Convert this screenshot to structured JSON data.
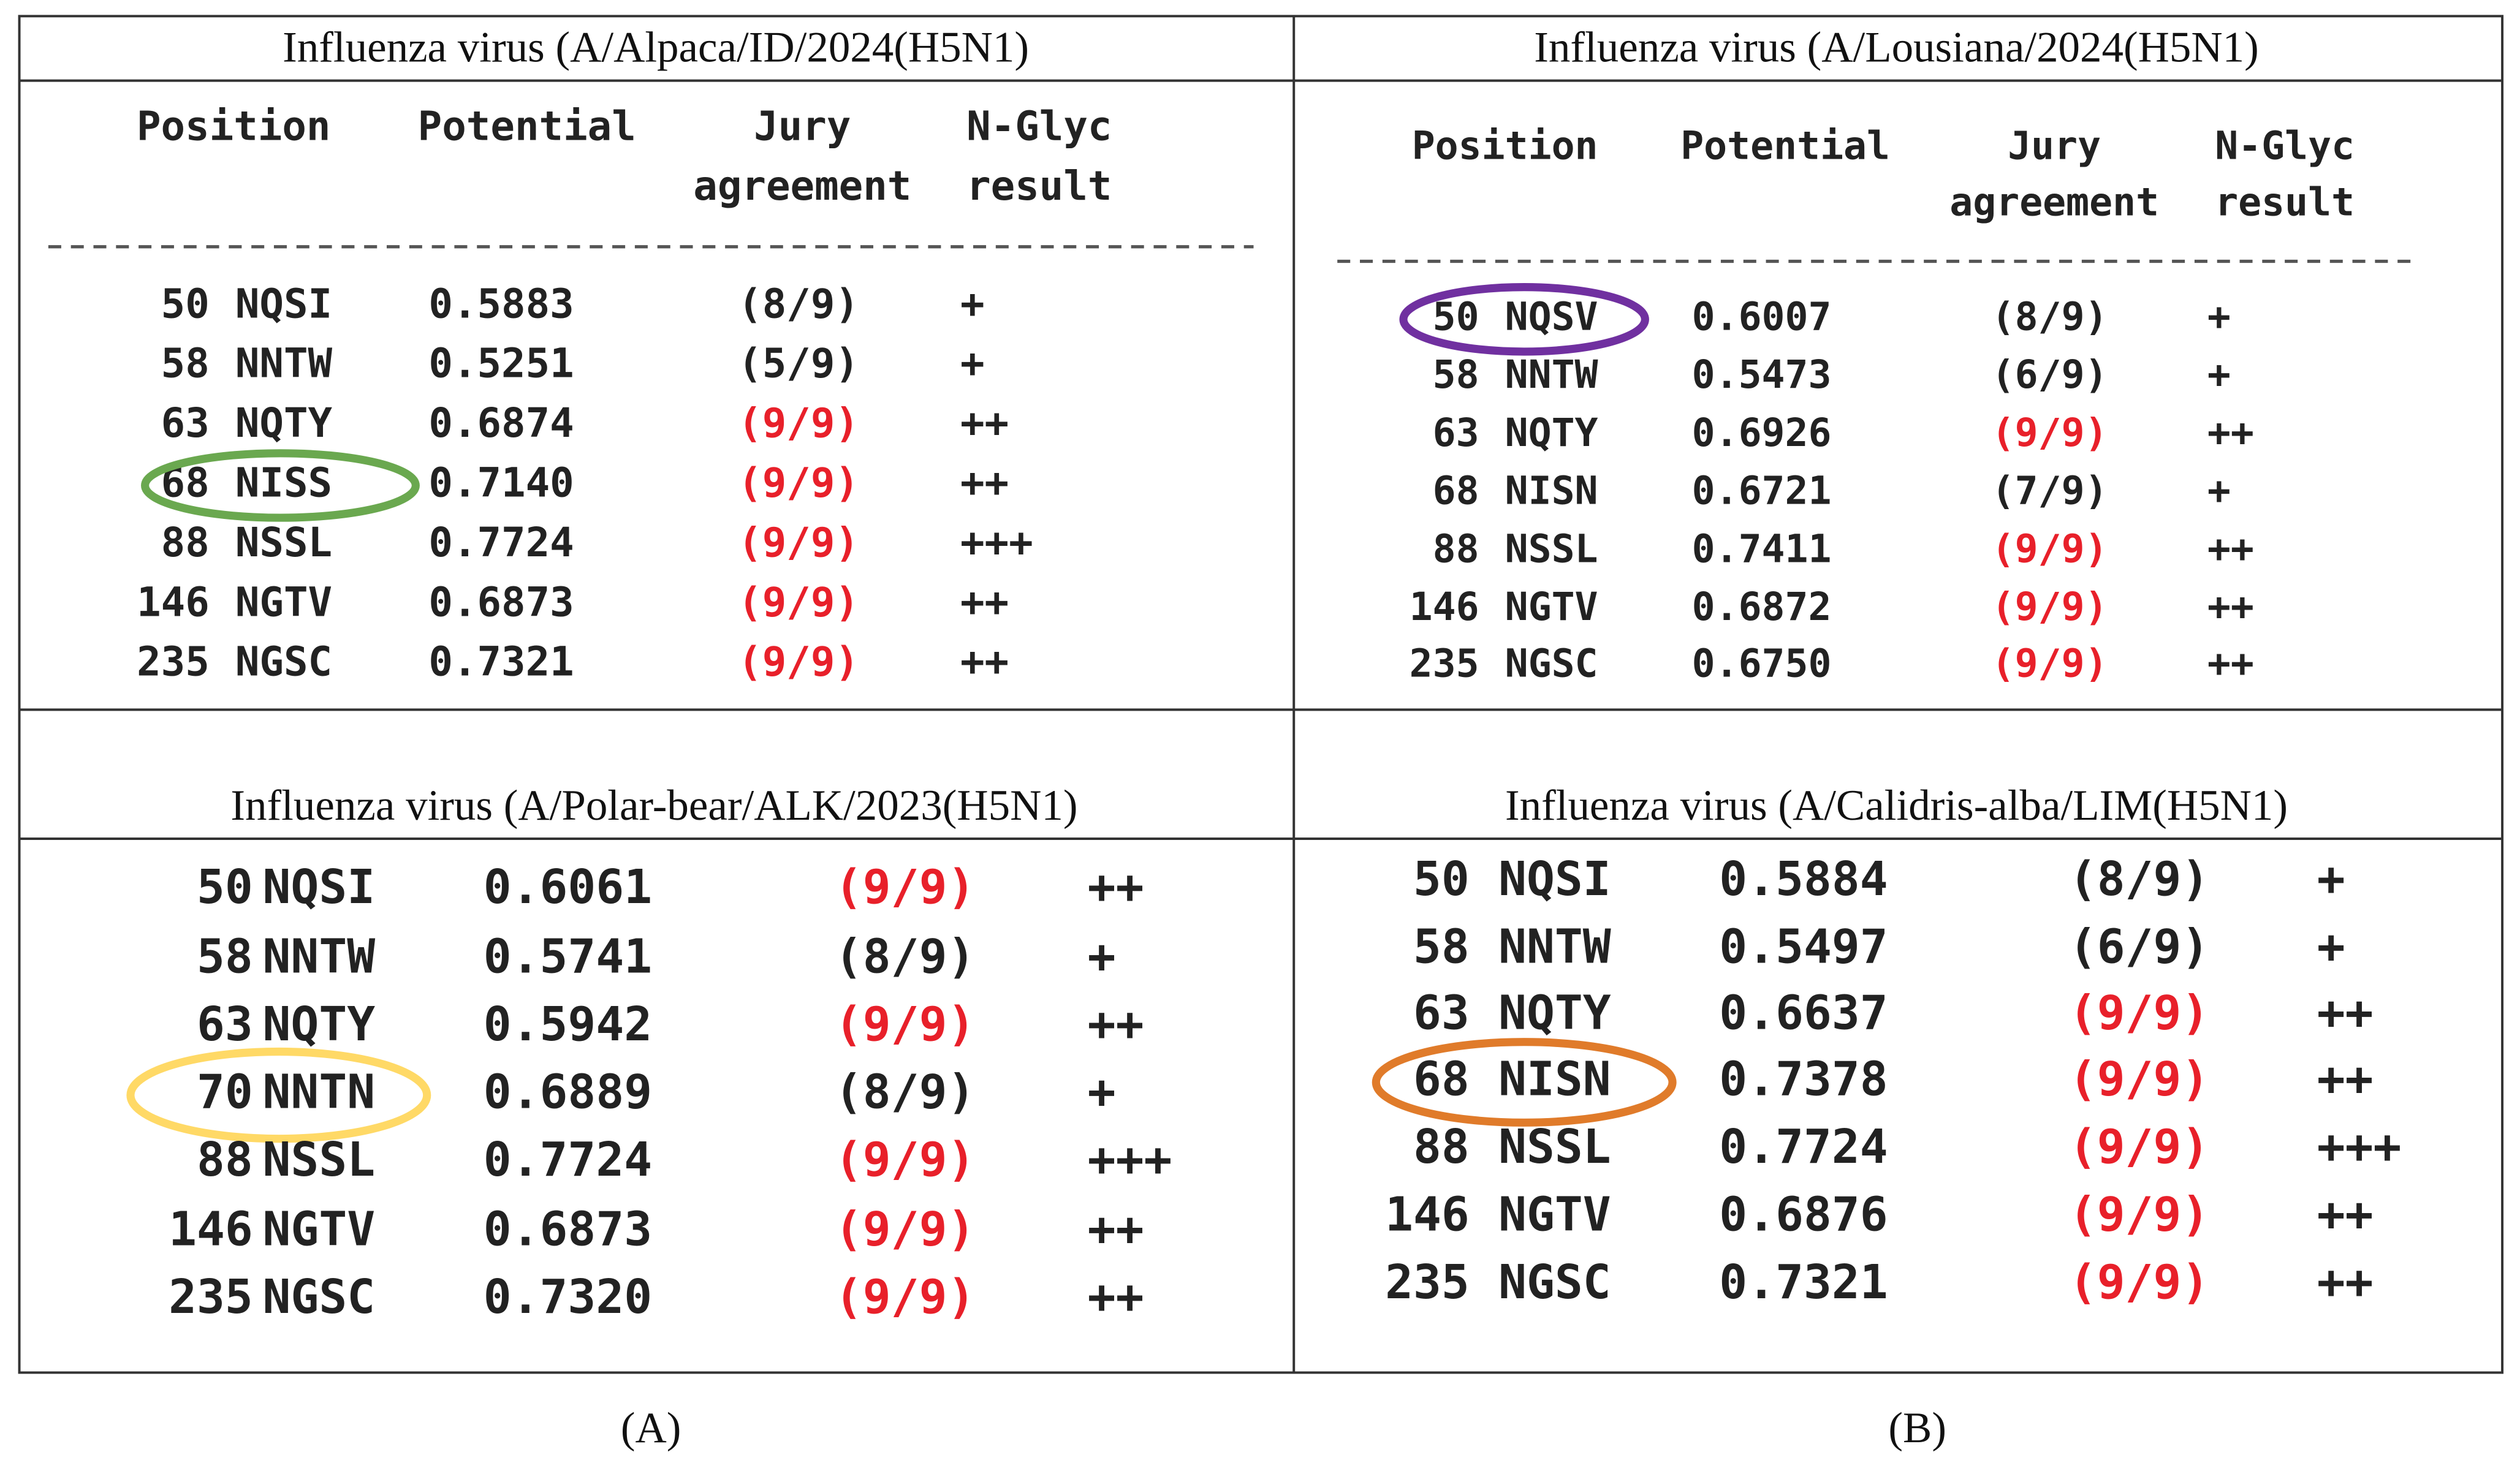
{
  "panels": [
    {
      "title": "Influenza virus (A/Alpaca/ID/2024(H5N1)",
      "header": [
        [
          "Position"
        ],
        [
          "Potential"
        ],
        [
          "Jury",
          "agreement"
        ],
        [
          "N-Glyc",
          "result"
        ]
      ],
      "rows": [
        {
          "position": "50",
          "site": "NQSI",
          "potential": "0.5883",
          "jury": "(8/9)",
          "result": "+"
        },
        {
          "position": "58",
          "site": "NNTW",
          "potential": "0.5251",
          "jury": "(5/9)",
          "result": "+"
        },
        {
          "position": "63",
          "site": "NQTY",
          "potential": "0.6874",
          "jury": "(9/9)",
          "result": "++",
          "jury_color": "#e8202a"
        },
        {
          "position": "68",
          "site": "NISS",
          "potential": "0.7140",
          "jury": "(9/9)",
          "result": "++",
          "jury_color": "#e8202a",
          "circle_color": "#6aa84f"
        },
        {
          "position": "88",
          "site": "NSSL",
          "potential": "0.7724",
          "jury": "(9/9)",
          "result": "+++",
          "jury_color": "#e8202a"
        },
        {
          "position": "146",
          "site": "NGTV",
          "potential": "0.6873",
          "jury": "(9/9)",
          "result": "++",
          "jury_color": "#e8202a"
        },
        {
          "position": "235",
          "site": "NGSC",
          "potential": "0.7321",
          "jury": "(9/9)",
          "result": "++",
          "jury_color": "#e8202a"
        }
      ]
    },
    {
      "title": "Influenza virus (A/Lousiana/2024(H5N1)",
      "header": [
        [
          "Position"
        ],
        [
          "Potential"
        ],
        [
          "Jury",
          "agreement"
        ],
        [
          "N-Glyc",
          "result"
        ]
      ],
      "rows": [
        {
          "position": "50",
          "site": "NQSV",
          "potential": "0.6007",
          "jury": "(8/9)",
          "result": "+",
          "circle_color": "#7030a0"
        },
        {
          "position": "58",
          "site": "NNTW",
          "potential": "0.5473",
          "jury": "(6/9)",
          "result": "+"
        },
        {
          "position": "63",
          "site": "NQTY",
          "potential": "0.6926",
          "jury": "(9/9)",
          "result": "++",
          "jury_color": "#e8202a"
        },
        {
          "position": "68",
          "site": "NISN",
          "potential": "0.6721",
          "jury": "(7/9)",
          "result": "+"
        },
        {
          "position": "88",
          "site": "NSSL",
          "potential": "0.7411",
          "jury": "(9/9)",
          "result": "++",
          "jury_color": "#e8202a"
        },
        {
          "position": "146",
          "site": "NGTV",
          "potential": "0.6872",
          "jury": "(9/9)",
          "result": "++",
          "jury_color": "#e8202a"
        },
        {
          "position": "235",
          "site": "NGSC",
          "potential": "0.6750",
          "jury": "(9/9)",
          "result": "++",
          "jury_color": "#e8202a"
        }
      ]
    },
    {
      "title": "Influenza virus (A/Polar-bear/ALK/2023(H5N1)",
      "rows": [
        {
          "position": "50",
          "site": "NQSI",
          "potential": "0.6061",
          "jury": "(9/9)",
          "result": "++",
          "jury_color": "#e8202a"
        },
        {
          "position": "58",
          "site": "NNTW",
          "potential": "0.5741",
          "jury": "(8/9)",
          "result": "+"
        },
        {
          "position": "63",
          "site": "NQTY",
          "potential": "0.5942",
          "jury": "(9/9)",
          "result": "++",
          "jury_color": "#e8202a"
        },
        {
          "position": "70",
          "site": "NNTN",
          "potential": "0.6889",
          "jury": "(8/9)",
          "result": "+",
          "circle_color": "#ffd966"
        },
        {
          "position": "88",
          "site": "NSSL",
          "potential": "0.7724",
          "jury": "(9/9)",
          "result": "+++",
          "jury_color": "#e8202a"
        },
        {
          "position": "146",
          "site": "NGTV",
          "potential": "0.6873",
          "jury": "(9/9)",
          "result": "++",
          "jury_color": "#e8202a"
        },
        {
          "position": "235",
          "site": "NGSC",
          "potential": "0.7320",
          "jury": "(9/9)",
          "result": "++",
          "jury_color": "#e8202a"
        }
      ]
    },
    {
      "title": "Influenza virus (A/Calidris-alba/LIM(H5N1)",
      "rows": [
        {
          "position": "50",
          "site": "NQSI",
          "potential": "0.5884",
          "jury": "(8/9)",
          "result": "+"
        },
        {
          "position": "58",
          "site": "NNTW",
          "potential": "0.5497",
          "jury": "(6/9)",
          "result": "+"
        },
        {
          "position": "63",
          "site": "NQTY",
          "potential": "0.6637",
          "jury": "(9/9)",
          "result": "++",
          "jury_color": "#e8202a"
        },
        {
          "position": "68",
          "site": "NISN",
          "potential": "0.7378",
          "jury": "(9/9)",
          "result": "++",
          "jury_color": "#e8202a",
          "circle_color": "#e07b2a"
        },
        {
          "position": "88",
          "site": "NSSL",
          "potential": "0.7724",
          "jury": "(9/9)",
          "result": "+++",
          "jury_color": "#e8202a"
        },
        {
          "position": "146",
          "site": "NGTV",
          "potential": "0.6876",
          "jury": "(9/9)",
          "result": "++",
          "jury_color": "#e8202a"
        },
        {
          "position": "235",
          "site": "NGSC",
          "potential": "0.7321",
          "jury": "(9/9)",
          "result": "++",
          "jury_color": "#e8202a"
        }
      ]
    }
  ],
  "captions": [
    "(A)",
    "(B)"
  ]
}
